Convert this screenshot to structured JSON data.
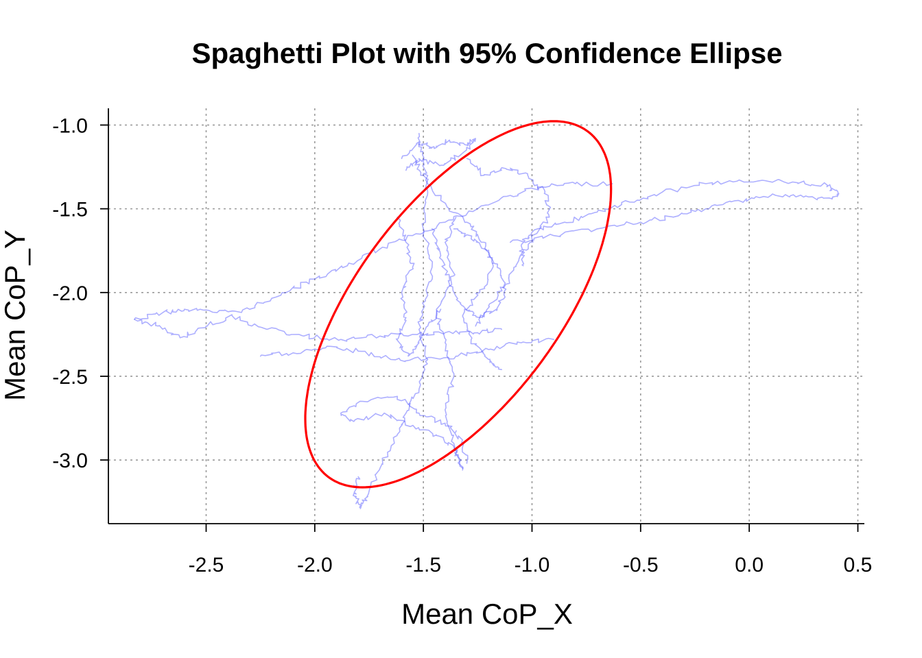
{
  "chart_data": {
    "type": "line",
    "title": "Spaghetti Plot with 95% Confidence Ellipse",
    "xlabel": "Mean CoP_X",
    "ylabel": "Mean CoP_Y",
    "xlim": [
      -2.95,
      0.53
    ],
    "ylim": [
      -3.38,
      -0.9
    ],
    "x_ticks": [
      -2.5,
      -2.0,
      -1.5,
      -1.0,
      -0.5,
      0.0,
      0.5
    ],
    "x_tick_labels": [
      "-2.5",
      "-2.0",
      "-1.5",
      "-1.0",
      "-0.5",
      "0.0",
      "0.5"
    ],
    "y_ticks": [
      -1.0,
      -1.5,
      -2.0,
      -2.5,
      -3.0
    ],
    "y_tick_labels": [
      "-1.0",
      "-1.5",
      "-2.0",
      "-2.5",
      "-3.0"
    ],
    "grid": true,
    "colors": {
      "trace": "#4a4dff",
      "ellipse": "#ff0000"
    },
    "series": [
      {
        "values": [
          [
            -1.52,
            -1.05
          ],
          [
            -1.5,
            -1.22
          ],
          [
            -1.48,
            -1.4
          ],
          [
            -1.5,
            -1.62
          ],
          [
            -1.46,
            -1.85
          ],
          [
            -1.49,
            -2.05
          ],
          [
            -1.52,
            -2.22
          ],
          [
            -1.48,
            -2.4
          ],
          [
            -1.52,
            -2.58
          ],
          [
            -1.58,
            -2.72
          ],
          [
            -1.63,
            -2.86
          ],
          [
            -1.7,
            -3.05
          ],
          [
            -1.76,
            -3.22
          ],
          [
            -1.79,
            -3.29
          ],
          [
            -1.82,
            -3.2
          ],
          [
            -1.8,
            -3.1
          ]
        ]
      },
      {
        "values": [
          [
            -1.32,
            -3.05
          ],
          [
            -1.36,
            -2.92
          ],
          [
            -1.44,
            -2.85
          ],
          [
            -1.56,
            -2.8
          ],
          [
            -1.68,
            -2.72
          ],
          [
            -1.82,
            -2.77
          ],
          [
            -1.88,
            -2.72
          ],
          [
            -1.78,
            -2.65
          ],
          [
            -1.62,
            -2.62
          ],
          [
            -1.52,
            -2.72
          ],
          [
            -1.4,
            -2.78
          ],
          [
            -1.32,
            -2.88
          ],
          [
            -1.3,
            -3.02
          ]
        ]
      },
      {
        "values": [
          [
            -2.83,
            -2.16
          ],
          [
            -2.7,
            -2.12
          ],
          [
            -2.6,
            -2.1
          ],
          [
            -2.45,
            -2.12
          ],
          [
            -2.3,
            -2.1
          ],
          [
            -2.15,
            -2.0
          ],
          [
            -2.0,
            -1.92
          ],
          [
            -1.85,
            -1.84
          ],
          [
            -1.7,
            -1.74
          ],
          [
            -1.55,
            -1.66
          ],
          [
            -1.4,
            -1.58
          ],
          [
            -1.25,
            -1.5
          ],
          [
            -1.1,
            -1.42
          ],
          [
            -0.95,
            -1.37
          ],
          [
            -0.8,
            -1.35
          ],
          [
            -0.63,
            -1.35
          ]
        ]
      },
      {
        "values": [
          [
            -2.83,
            -2.16
          ],
          [
            -2.72,
            -2.2
          ],
          [
            -2.62,
            -2.27
          ],
          [
            -2.5,
            -2.2
          ],
          [
            -2.38,
            -2.14
          ],
          [
            -2.22,
            -2.22
          ],
          [
            -2.05,
            -2.26
          ],
          [
            -1.88,
            -2.28
          ],
          [
            -1.7,
            -2.26
          ],
          [
            -1.55,
            -2.25
          ],
          [
            -1.4,
            -2.24
          ],
          [
            -1.25,
            -2.24
          ],
          [
            -1.14,
            -2.22
          ]
        ]
      },
      {
        "values": [
          [
            -2.25,
            -2.38
          ],
          [
            -2.1,
            -2.36
          ],
          [
            -1.95,
            -2.33
          ],
          [
            -1.8,
            -2.35
          ],
          [
            -1.65,
            -2.4
          ],
          [
            -1.5,
            -2.4
          ],
          [
            -1.35,
            -2.38
          ],
          [
            -1.2,
            -2.34
          ],
          [
            -1.05,
            -2.3
          ],
          [
            -0.9,
            -2.28
          ]
        ]
      },
      {
        "values": [
          [
            -1.1,
            -1.7
          ],
          [
            -0.9,
            -1.66
          ],
          [
            -0.7,
            -1.62
          ],
          [
            -0.5,
            -1.58
          ],
          [
            -0.35,
            -1.55
          ],
          [
            -0.2,
            -1.5
          ],
          [
            -0.05,
            -1.45
          ],
          [
            0.1,
            -1.42
          ],
          [
            0.25,
            -1.43
          ],
          [
            0.38,
            -1.44
          ],
          [
            0.41,
            -1.41
          ],
          [
            0.36,
            -1.36
          ],
          [
            0.2,
            -1.34
          ],
          [
            0.0,
            -1.34
          ],
          [
            -0.2,
            -1.35
          ],
          [
            -0.4,
            -1.4
          ],
          [
            -0.55,
            -1.46
          ],
          [
            -0.7,
            -1.52
          ],
          [
            -0.85,
            -1.58
          ],
          [
            -1.0,
            -1.64
          ],
          [
            -1.05,
            -1.72
          ],
          [
            -1.04,
            -1.84
          ]
        ]
      },
      {
        "values": [
          [
            -1.55,
            -1.18
          ],
          [
            -1.5,
            -1.3
          ],
          [
            -1.42,
            -1.45
          ],
          [
            -1.3,
            -1.58
          ],
          [
            -1.22,
            -1.7
          ],
          [
            -1.18,
            -1.85
          ],
          [
            -1.24,
            -2.0
          ],
          [
            -1.32,
            -2.14
          ],
          [
            -1.28,
            -2.28
          ],
          [
            -1.2,
            -2.4
          ],
          [
            -1.14,
            -2.46
          ]
        ]
      },
      {
        "values": [
          [
            -1.3,
            -1.2
          ],
          [
            -1.22,
            -1.3
          ],
          [
            -1.12,
            -1.26
          ],
          [
            -1.02,
            -1.3
          ],
          [
            -0.94,
            -1.4
          ],
          [
            -0.92,
            -1.55
          ],
          [
            -1.0,
            -1.68
          ],
          [
            -1.06,
            -1.8
          ],
          [
            -1.12,
            -1.95
          ],
          [
            -1.2,
            -2.08
          ],
          [
            -1.26,
            -2.2
          ]
        ]
      },
      {
        "values": [
          [
            -1.35,
            -1.55
          ],
          [
            -1.4,
            -1.7
          ],
          [
            -1.36,
            -1.9
          ],
          [
            -1.44,
            -2.1
          ],
          [
            -1.4,
            -2.3
          ],
          [
            -1.36,
            -2.5
          ],
          [
            -1.4,
            -2.7
          ],
          [
            -1.36,
            -2.9
          ],
          [
            -1.32,
            -3.06
          ]
        ]
      },
      {
        "values": [
          [
            -1.6,
            -1.2
          ],
          [
            -1.52,
            -1.1
          ],
          [
            -1.45,
            -1.14
          ],
          [
            -1.38,
            -1.09
          ],
          [
            -1.3,
            -1.12
          ],
          [
            -1.26,
            -1.08
          ],
          [
            -1.33,
            -1.18
          ],
          [
            -1.42,
            -1.24
          ],
          [
            -1.52,
            -1.2
          ],
          [
            -1.58,
            -1.27
          ]
        ]
      },
      {
        "values": [
          [
            -1.62,
            -1.55
          ],
          [
            -1.58,
            -1.7
          ],
          [
            -1.55,
            -1.85
          ],
          [
            -1.6,
            -2.0
          ],
          [
            -1.58,
            -2.15
          ],
          [
            -1.62,
            -2.28
          ],
          [
            -1.57,
            -2.38
          ],
          [
            -1.52,
            -2.3
          ],
          [
            -1.48,
            -2.2
          ],
          [
            -1.42,
            -2.1
          ]
        ]
      },
      {
        "values": [
          [
            -1.46,
            -1.62
          ],
          [
            -1.42,
            -1.78
          ],
          [
            -1.38,
            -1.95
          ],
          [
            -1.32,
            -2.08
          ],
          [
            -1.24,
            -2.15
          ],
          [
            -1.16,
            -2.1
          ],
          [
            -1.12,
            -1.98
          ],
          [
            -1.16,
            -1.85
          ],
          [
            -1.2,
            -1.75
          ],
          [
            -1.28,
            -1.68
          ],
          [
            -1.36,
            -1.62
          ]
        ]
      }
    ],
    "ellipse": {
      "center": [
        -1.34,
        -2.07
      ],
      "semi_axes": [
        1.2,
        0.5
      ],
      "rotation_deg": 63
    }
  }
}
